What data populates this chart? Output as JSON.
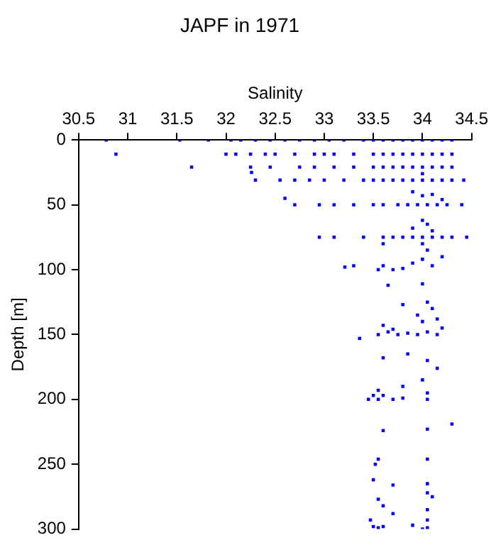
{
  "chart_data": {
    "type": "scatter",
    "title": "JAPF in 1971",
    "xlabel": "Salinity",
    "ylabel": "Depth [m]",
    "marker": "square",
    "grid": false,
    "xlim": [
      30.5,
      34.5
    ],
    "xticks": [
      30.5,
      31,
      31.5,
      32,
      32.5,
      33,
      33.5,
      34,
      34.5
    ],
    "ylim": [
      300,
      0
    ],
    "yticks": [
      0,
      50,
      100,
      150,
      200,
      250,
      300
    ],
    "series": [
      {
        "color": "#0000ff",
        "x": [
          30.78,
          31.53,
          31.82,
          32.05,
          32.15,
          32.3,
          32.45,
          32.6,
          32.75,
          32.9,
          33.05,
          33.2,
          33.4,
          33.5,
          33.6,
          33.7,
          33.8,
          33.9,
          34.0,
          34.1,
          34.2,
          34.3,
          30.88,
          32.0,
          32.1,
          32.25,
          32.4,
          32.5,
          32.7,
          32.9,
          33.0,
          33.1,
          33.3,
          33.5,
          33.6,
          33.7,
          33.8,
          33.9,
          34.0,
          34.1,
          34.2,
          34.3,
          31.65,
          32.25,
          32.45,
          32.75,
          32.9,
          33.1,
          33.3,
          33.5,
          33.6,
          33.7,
          33.8,
          33.9,
          34.0,
          34.1,
          34.2,
          34.3,
          32.3,
          32.55,
          32.7,
          32.85,
          33.0,
          33.2,
          33.4,
          33.5,
          33.6,
          33.7,
          33.8,
          33.9,
          34.0,
          34.1,
          34.2,
          34.3,
          34.42,
          32.26,
          34.0,
          32.6,
          32.7,
          32.95,
          33.1,
          33.3,
          33.5,
          33.6,
          33.75,
          33.85,
          33.95,
          34.05,
          34.15,
          34.25,
          34.4,
          33.9,
          34.0,
          34.1,
          34.2,
          32.95,
          33.1,
          33.4,
          33.6,
          33.7,
          33.8,
          33.9,
          34.0,
          34.1,
          34.2,
          34.3,
          34.45,
          33.9,
          34.0,
          34.05,
          34.1,
          33.6,
          34.0,
          33.21,
          33.3,
          33.55,
          33.6,
          33.7,
          33.8,
          33.9,
          34.0,
          34.05,
          34.1,
          34.2,
          34.0,
          33.65,
          34.05,
          34.1,
          33.8,
          33.95,
          34.15,
          33.36,
          33.55,
          33.65,
          33.75,
          33.85,
          33.95,
          34.05,
          34.15,
          33.6,
          33.7,
          34.0,
          34.2,
          33.6,
          33.85,
          34.05,
          34.15,
          34.0,
          33.8,
          33.55,
          33.45,
          33.5,
          33.55,
          33.6,
          33.7,
          33.8,
          34.05,
          34.05,
          34.3,
          33.6,
          34.05,
          33.55,
          33.52,
          34.05,
          33.5,
          34.05,
          34.05,
          33.7,
          33.55,
          34.1,
          33.6,
          33.7,
          34.05,
          34.05,
          33.47,
          33.5,
          33.55,
          33.6,
          34.05,
          33.9,
          34.0
        ],
        "values": [
          0,
          0,
          0,
          0,
          0,
          0,
          0,
          0,
          0,
          0,
          0,
          0,
          0,
          0,
          0,
          0,
          0,
          0,
          0,
          0,
          0,
          0,
          11,
          11,
          11,
          11,
          11,
          11,
          11,
          11,
          11,
          11,
          11,
          11,
          11,
          11,
          11,
          11,
          11,
          11,
          11,
          11,
          21,
          21,
          21,
          21,
          21,
          21,
          21,
          21,
          21,
          21,
          21,
          21,
          21,
          21,
          21,
          21,
          31,
          31,
          31,
          31,
          31,
          31,
          31,
          31,
          31,
          31,
          31,
          31,
          31,
          31,
          31,
          31,
          31,
          25,
          26,
          45,
          50,
          50,
          50,
          50,
          50,
          50,
          50,
          50,
          50,
          50,
          50,
          50,
          50,
          40,
          43,
          42,
          46,
          75,
          75,
          75,
          75,
          75,
          75,
          75,
          75,
          75,
          75,
          75,
          75,
          68,
          62,
          65,
          70,
          80,
          80,
          98,
          97,
          100,
          97,
          100,
          99,
          95,
          92,
          85,
          97,
          90,
          111,
          112,
          125,
          130,
          127,
          135,
          138,
          153,
          150,
          148,
          150,
          149,
          150,
          148,
          150,
          143,
          146,
          140,
          145,
          168,
          165,
          170,
          176,
          185,
          190,
          193,
          200,
          197,
          200,
          197,
          200,
          199,
          200,
          195,
          219,
          224,
          223,
          246,
          250,
          246,
          262,
          265,
          272,
          266,
          277,
          275,
          282,
          288,
          285,
          293,
          293,
          298,
          299,
          298,
          299,
          297,
          300
        ]
      }
    ]
  }
}
